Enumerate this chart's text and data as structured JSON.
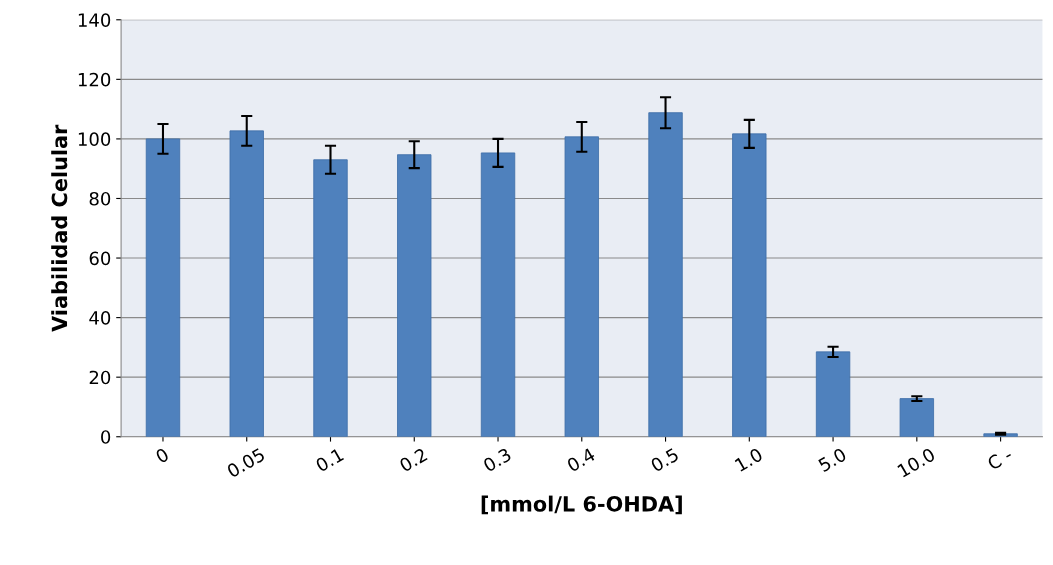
{
  "chart_data": {
    "type": "bar",
    "xlabel": "[mmol/L 6-OHDA]",
    "ylabel": "Viabilidad Celular",
    "categories": [
      "0",
      "0.05",
      "0.1",
      "0.2",
      "0.3",
      "0.4",
      "0.5",
      "1.0",
      "5.0",
      "10.0",
      "C -"
    ],
    "values": [
      100,
      102.7,
      93,
      94.7,
      95.3,
      100.7,
      108.8,
      101.7,
      28.5,
      12.8,
      1.0
    ],
    "errors": [
      5,
      5,
      4.7,
      4.5,
      4.7,
      5,
      5.2,
      4.7,
      1.7,
      0.8,
      0.3
    ],
    "color": "#4f81bd",
    "ylim": [
      0,
      140
    ],
    "yticks": [
      0,
      20,
      40,
      60,
      80,
      100,
      120,
      140
    ],
    "grid": "y"
  }
}
